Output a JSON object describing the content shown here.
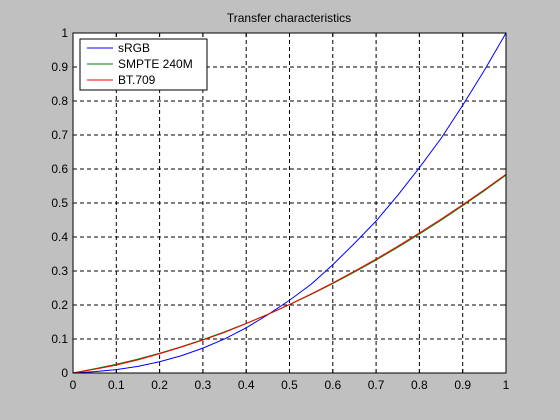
{
  "chart_data": {
    "type": "line",
    "title": "Transfer characteristics",
    "xlabel": "",
    "ylabel": "",
    "xlim": [
      0,
      1
    ],
    "ylim": [
      0,
      1
    ],
    "grid": true,
    "legend_position": "top-left",
    "x_ticks": [
      0,
      0.1,
      0.2,
      0.3,
      0.4,
      0.5,
      0.6,
      0.7,
      0.8,
      0.9,
      1
    ],
    "y_ticks": [
      0,
      0.1,
      0.2,
      0.3,
      0.4,
      0.5,
      0.6,
      0.7,
      0.8,
      0.9,
      1
    ],
    "x_tick_labels": [
      "0",
      "0.1",
      "0.2",
      "0.3",
      "0.4",
      "0.5",
      "0.6",
      "0.7",
      "0.8",
      "0.9",
      "1"
    ],
    "y_tick_labels": [
      "0",
      "0.1",
      "0.2",
      "0.3",
      "0.4",
      "0.5",
      "0.6",
      "0.7",
      "0.8",
      "0.9",
      "1"
    ],
    "x": [
      0,
      0.05,
      0.1,
      0.15,
      0.2,
      0.25,
      0.3,
      0.35,
      0.4,
      0.45,
      0.5,
      0.55,
      0.6,
      0.65,
      0.7,
      0.75,
      0.8,
      0.85,
      0.9,
      0.95,
      1
    ],
    "series": [
      {
        "name": "sRGB",
        "color": "#0000ff",
        "values": [
          0,
          0.0039,
          0.01,
          0.0194,
          0.0331,
          0.0508,
          0.0732,
          0.1001,
          0.1329,
          0.1714,
          0.214,
          0.261,
          0.3185,
          0.3812,
          0.447,
          0.5225,
          0.6038,
          0.69,
          0.7874,
          0.89,
          1
        ]
      },
      {
        "name": "SMPTE 240M",
        "color": "#008000",
        "values": [
          0,
          0.0126,
          0.0257,
          0.0409,
          0.0581,
          0.0772,
          0.0982,
          0.1211,
          0.1459,
          0.1724,
          0.2008,
          0.231,
          0.263,
          0.2968,
          0.3323,
          0.3696,
          0.4086,
          0.4494,
          0.4919,
          0.5362,
          0.5821
        ]
      },
      {
        "name": "BT.709",
        "color": "#ff0000",
        "values": [
          0,
          0.0111,
          0.0233,
          0.0385,
          0.0565,
          0.076,
          0.0969,
          0.1193,
          0.1453,
          0.1726,
          0.2017,
          0.2325,
          0.265,
          0.2993,
          0.3351,
          0.3727,
          0.4118,
          0.4526,
          0.495,
          0.539,
          0.5846
        ]
      }
    ]
  }
}
